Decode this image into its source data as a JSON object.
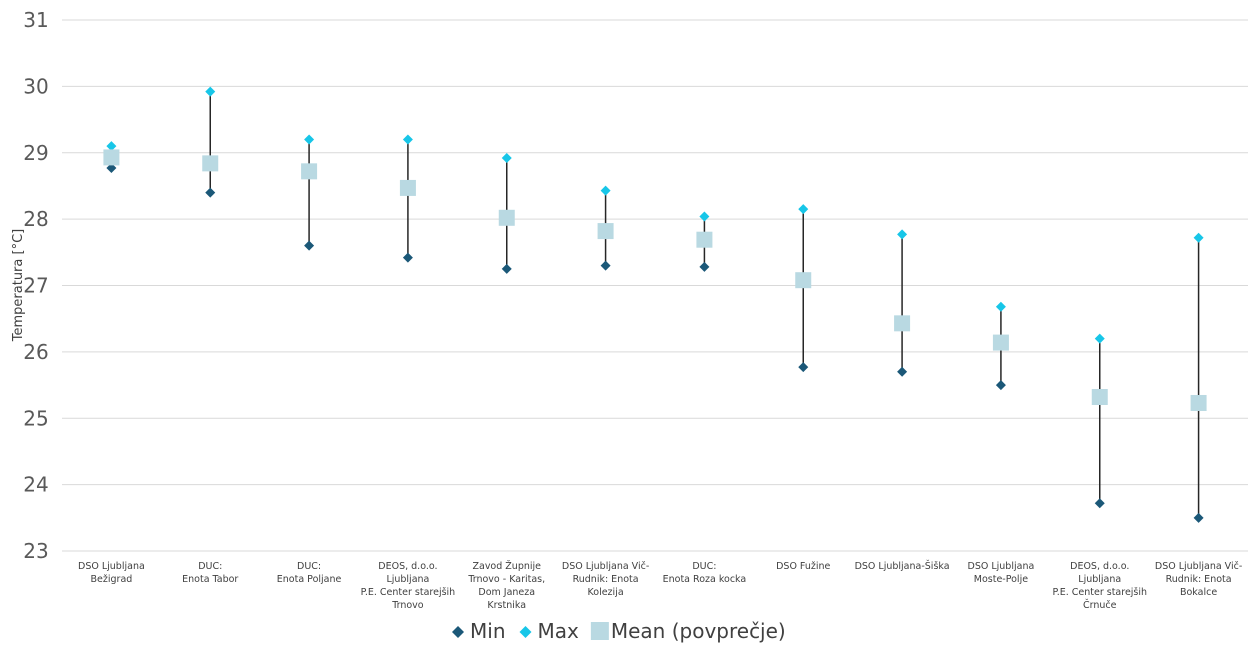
{
  "chart_data": {
    "type": "scatter",
    "title": "",
    "xlabel": "",
    "ylabel": "Temperatura [°C]",
    "ylim": [
      23,
      31
    ],
    "yticks": [
      23,
      24,
      25,
      26,
      27,
      28,
      29,
      30,
      31
    ],
    "grid": true,
    "legend_position": "bottom",
    "categories": [
      [
        "DSO Ljubljana",
        "Bežigrad"
      ],
      [
        "DUC:",
        "Enota Tabor"
      ],
      [
        "DUC:",
        "Enota Poljane"
      ],
      [
        "DEOS, d.o.o.",
        "Ljubljana",
        "P.E. Center starejših",
        "Trnovo"
      ],
      [
        "Zavod Župnije",
        "Trnovo - Karitas,",
        "Dom Janeza",
        "Krstnika"
      ],
      [
        "DSO Ljubljana Vič-",
        "Rudnik: Enota",
        "Kolezija"
      ],
      [
        "DUC:",
        "Enota Roza kocka"
      ],
      [
        "DSO Fužine"
      ],
      [
        "DSO Ljubljana-Šiška"
      ],
      [
        "DSO Ljubljana",
        "Moste-Polje"
      ],
      [
        "DEOS, d.o.o.",
        "Ljubljana",
        "P.E. Center starejših",
        "Črnuče"
      ],
      [
        "DSO Ljubljana Vič-",
        "Rudnik: Enota",
        "Bokalce"
      ]
    ],
    "series": [
      {
        "name": "Min",
        "color": "#1b5878",
        "marker": "diamond",
        "values": [
          28.77,
          28.4,
          27.6,
          27.42,
          27.25,
          27.3,
          27.28,
          25.77,
          25.7,
          25.5,
          23.72,
          23.5
        ]
      },
      {
        "name": "Max",
        "color": "#17c6e8",
        "marker": "diamond",
        "values": [
          29.1,
          29.92,
          29.2,
          29.2,
          28.92,
          28.43,
          28.04,
          28.15,
          27.77,
          26.68,
          26.2,
          27.72
        ]
      },
      {
        "name": "Mean (povprečje)",
        "color": "#b9d9e2",
        "marker": "square",
        "values": [
          28.93,
          28.84,
          28.72,
          28.47,
          28.02,
          27.82,
          27.69,
          27.08,
          26.43,
          26.14,
          25.32,
          25.23
        ]
      }
    ]
  }
}
